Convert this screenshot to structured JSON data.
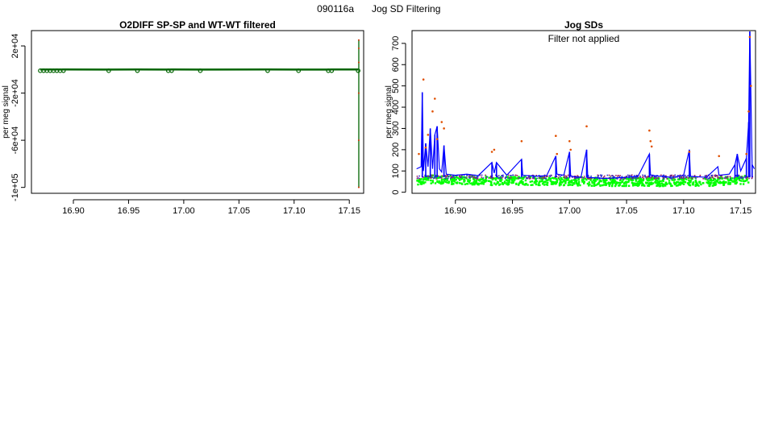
{
  "figure": {
    "title_id": "090116a",
    "title_text": "Jog SD Filtering"
  },
  "chart_data": [
    {
      "type": "line",
      "title": "O2DIFF SP-SP and WT-WT filtered",
      "xlabel": "",
      "ylabel": "per meg signal",
      "xlim": [
        16.862,
        17.163
      ],
      "ylim": [
        -105000,
        33000
      ],
      "x_ticks": [
        16.9,
        16.95,
        17.0,
        17.05,
        17.1,
        17.15
      ],
      "x_tick_labels": [
        "16.90",
        "16.95",
        "17.00",
        "17.05",
        "17.10",
        "17.15"
      ],
      "y_ticks": [
        20000,
        -20000,
        -60000,
        -100000
      ],
      "y_tick_labels": [
        "2e+04",
        "-2e+04",
        "-6e+04",
        "-1e+05"
      ],
      "grid": false,
      "series": [
        {
          "color": "#006400",
          "x": [
            16.87,
            16.873,
            16.876,
            16.879,
            16.882,
            16.885,
            16.888,
            16.891,
            16.932,
            16.958,
            16.986,
            16.989,
            17.015,
            17.076,
            17.104,
            17.131,
            17.134,
            17.158
          ],
          "values": [
            -8,
            -5,
            -7,
            -4,
            -6,
            -3,
            -9,
            -5,
            -6,
            -4,
            -7,
            -5,
            -6,
            -5,
            -7,
            -6,
            -4,
            -5
          ]
        },
        {
          "color": "#006400",
          "x": [
            17.1586,
            17.1586,
            17.1586,
            17.1586,
            17.1586,
            17.1586
          ],
          "values": [
            25000,
            18000,
            6000,
            -20000,
            -60000,
            -100000
          ]
        }
      ]
    },
    {
      "type": "line",
      "title": "Jog SDs",
      "annotation": "Filter not applied",
      "xlabel": "",
      "ylabel": "per meg signal",
      "xlim": [
        16.862,
        17.163
      ],
      "ylim": [
        -5,
        760
      ],
      "x_ticks": [
        16.9,
        16.95,
        17.0,
        17.05,
        17.1,
        17.15
      ],
      "x_tick_labels": [
        "16.90",
        "16.95",
        "17.00",
        "17.05",
        "17.10",
        "17.15"
      ],
      "y_ticks": [
        0,
        100,
        200,
        300,
        400,
        500,
        600,
        700
      ],
      "y_tick_labels": [
        "0",
        "100",
        "200",
        "300",
        "400",
        "500",
        "600",
        "700"
      ],
      "grid": false,
      "series": [
        {
          "color": "#0000ff",
          "x": [
            16.866,
            16.87,
            16.871,
            16.872,
            16.874,
            16.876,
            16.878,
            16.88,
            16.882,
            16.884,
            16.886,
            16.888,
            16.89,
            16.892,
            16.9,
            16.91,
            16.92,
            16.932,
            16.934,
            16.936,
            16.945,
            16.958,
            16.959,
            16.97,
            16.98,
            16.988,
            16.989,
            16.995,
            17.0,
            17.001,
            17.01,
            17.015,
            17.016,
            17.03,
            17.05,
            17.06,
            17.07,
            17.071,
            17.08,
            17.09,
            17.1,
            17.105,
            17.106,
            17.12,
            17.13,
            17.131,
            17.14,
            17.145,
            17.147,
            17.15,
            17.155,
            17.157,
            17.158,
            17.16,
            17.162
          ],
          "values": [
            110,
            120,
            470,
            100,
            230,
            120,
            300,
            110,
            270,
            310,
            110,
            95,
            220,
            85,
            80,
            85,
            78,
            140,
            90,
            140,
            80,
            155,
            80,
            75,
            78,
            170,
            85,
            80,
            190,
            75,
            70,
            200,
            70,
            65,
            70,
            75,
            180,
            80,
            75,
            70,
            80,
            200,
            75,
            70,
            120,
            80,
            85,
            130,
            180,
            100,
            160,
            330,
            760,
            130,
            110
          ]
        },
        {
          "color": "#ff0000",
          "x": [
            16.868,
            16.872,
            16.874,
            16.876,
            16.88,
            16.882,
            16.884,
            16.888,
            16.89,
            16.932,
            16.934,
            16.958,
            16.988,
            16.989,
            17.0,
            17.001,
            17.015,
            17.07,
            17.071,
            17.072,
            17.105,
            17.131,
            17.155,
            17.157,
            17.158,
            17.159
          ],
          "values": [
            180,
            530,
            210,
            270,
            380,
            440,
            250,
            330,
            300,
            190,
            200,
            240,
            265,
            180,
            240,
            200,
            310,
            290,
            240,
            215,
            190,
            170,
            180,
            380,
            730,
            500
          ]
        },
        {
          "color": "#00ff00",
          "x": [
            16.866,
            16.88,
            16.9,
            16.92,
            16.94,
            16.96,
            16.98,
            17.0,
            17.02,
            17.04,
            17.06,
            17.08,
            17.1,
            17.12,
            17.14,
            17.16
          ],
          "values": [
            55,
            60,
            58,
            55,
            52,
            55,
            50,
            52,
            50,
            48,
            50,
            48,
            50,
            48,
            55,
            60
          ]
        }
      ]
    }
  ]
}
